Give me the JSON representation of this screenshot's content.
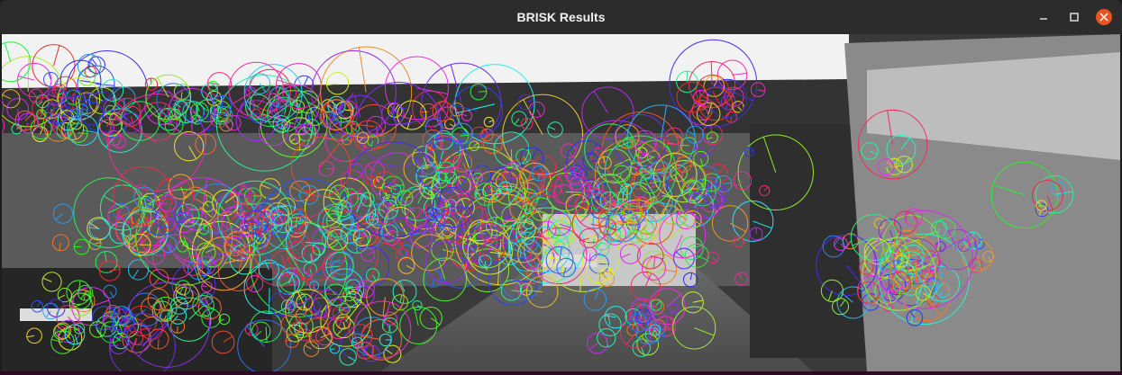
{
  "window": {
    "title": "BRISK Results"
  }
}
